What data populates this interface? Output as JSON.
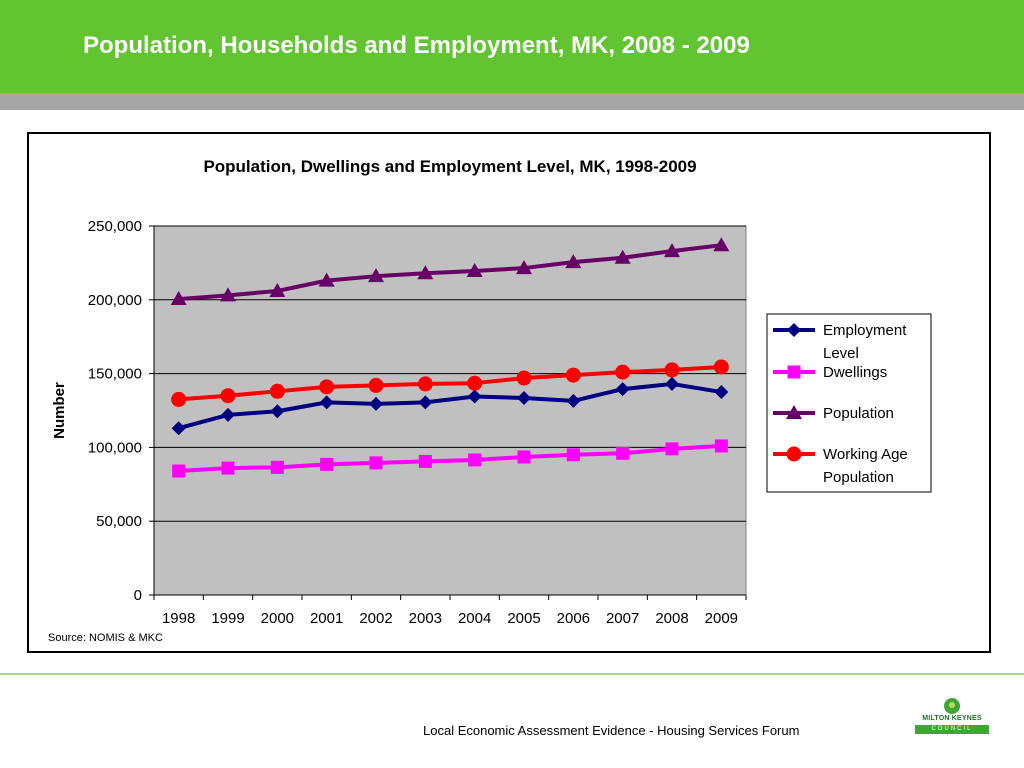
{
  "slide": {
    "title": "Population, Households and Employment, MK, 2008 - 2009",
    "source": "Source: NOMIS & MKC",
    "footer": "Local Economic Assessment Evidence - Housing Services Forum",
    "logo": {
      "name": "MILTON KEYNES",
      "sub": "COUNCIL"
    }
  },
  "colors": {
    "header_green": "#62c431",
    "band_grey": "#a6a6a6",
    "plot_bg": "#c0c0c0"
  },
  "chart_data": {
    "type": "line",
    "title": "Population, Dwellings and Employment Level, MK, 1998-2009",
    "xlabel": "",
    "ylabel": "Number",
    "categories": [
      "1998",
      "1999",
      "2000",
      "2001",
      "2002",
      "2003",
      "2004",
      "2005",
      "2006",
      "2007",
      "2008",
      "2009"
    ],
    "ylim": [
      0,
      250000
    ],
    "yticks": [
      0,
      50000,
      100000,
      150000,
      200000,
      250000
    ],
    "ytick_labels": [
      "0",
      "50,000",
      "100,000",
      "150,000",
      "200,000",
      "250,000"
    ],
    "grid": true,
    "legend_position": "right",
    "series": [
      {
        "name": "Employment Level",
        "color": "#000080",
        "marker": "diamond",
        "values": [
          113000,
          122000,
          124500,
          130500,
          129500,
          130500,
          134500,
          133500,
          131500,
          139500,
          143000,
          137500
        ]
      },
      {
        "name": "Dwellings",
        "color": "#ff00ff",
        "marker": "square",
        "values": [
          84000,
          86000,
          86500,
          88500,
          89500,
          90500,
          91500,
          93500,
          95000,
          96000,
          99000,
          101000
        ]
      },
      {
        "name": "Population",
        "color": "#660066",
        "marker": "triangle",
        "values": [
          200500,
          203000,
          206000,
          213000,
          216000,
          218000,
          219500,
          221500,
          225500,
          228500,
          233000,
          237000
        ]
      },
      {
        "name": "Working Age Population",
        "color": "#ff0000",
        "marker": "circle",
        "values": [
          132500,
          135000,
          138000,
          141000,
          142000,
          143000,
          143500,
          147000,
          149000,
          151000,
          152500,
          154500
        ]
      }
    ]
  }
}
